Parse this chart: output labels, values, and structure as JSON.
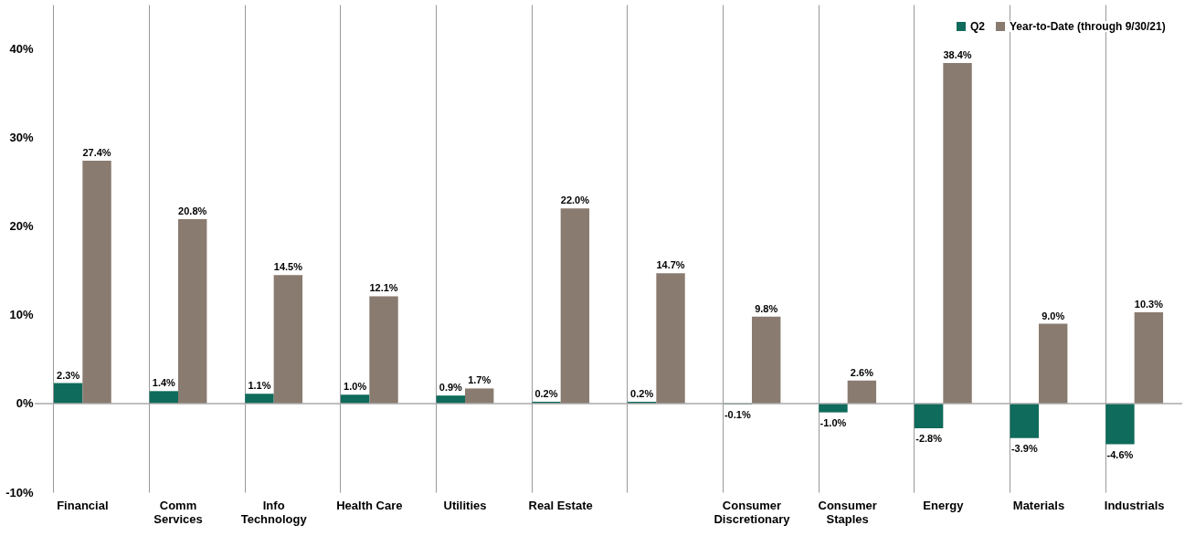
{
  "chart_data": {
    "type": "bar",
    "categories": [
      "Financial",
      "Comm\nServices",
      "Info\nTechnology",
      "Health Care",
      "Utilities",
      "Real Estate",
      null,
      "Consumer\nDiscretionary",
      "Consumer\nStaples",
      "Energy",
      "Materials",
      "Industrials"
    ],
    "series": [
      {
        "name": "Q2",
        "color": "#0f6b5c",
        "values": [
          2.3,
          1.4,
          1.1,
          1.0,
          0.9,
          0.2,
          0.2,
          -0.1,
          -1.0,
          -2.8,
          -3.9,
          -4.6
        ],
        "value_labels": [
          "2.3%",
          "1.4%",
          "1.1%",
          "1.0%",
          "0.9%",
          "0.2%",
          "0.2%",
          "-0.1%",
          "-1.0%",
          "-2.8%",
          "-3.9%",
          "-4.6%"
        ]
      },
      {
        "name": "Year-to-Date (through 9/30/21)",
        "color": "#8a7b70",
        "values": [
          27.4,
          20.8,
          14.5,
          12.1,
          1.7,
          22.0,
          14.7,
          9.8,
          2.6,
          38.4,
          9.0,
          10.3
        ],
        "value_labels": [
          "27.4%",
          "20.8%",
          "14.5%",
          "12.1%",
          "1.7%",
          "22.0%",
          "14.7%",
          "9.8%",
          "2.6%",
          "38.4%",
          "9.0%",
          "10.3%"
        ]
      }
    ],
    "ylim": [
      -10,
      45
    ],
    "yticks": [
      {
        "value": -10,
        "label": "-10%"
      },
      {
        "value": 0,
        "label": "0%"
      },
      {
        "value": 10,
        "label": "10%"
      },
      {
        "value": 20,
        "label": "20%"
      },
      {
        "value": 30,
        "label": "30%"
      },
      {
        "value": 40,
        "label": "40%"
      }
    ],
    "ref_lines": [
      {
        "axis": "y",
        "value": 0,
        "color": "#aaaaaa"
      }
    ],
    "grid": "x",
    "legend": "top right"
  }
}
